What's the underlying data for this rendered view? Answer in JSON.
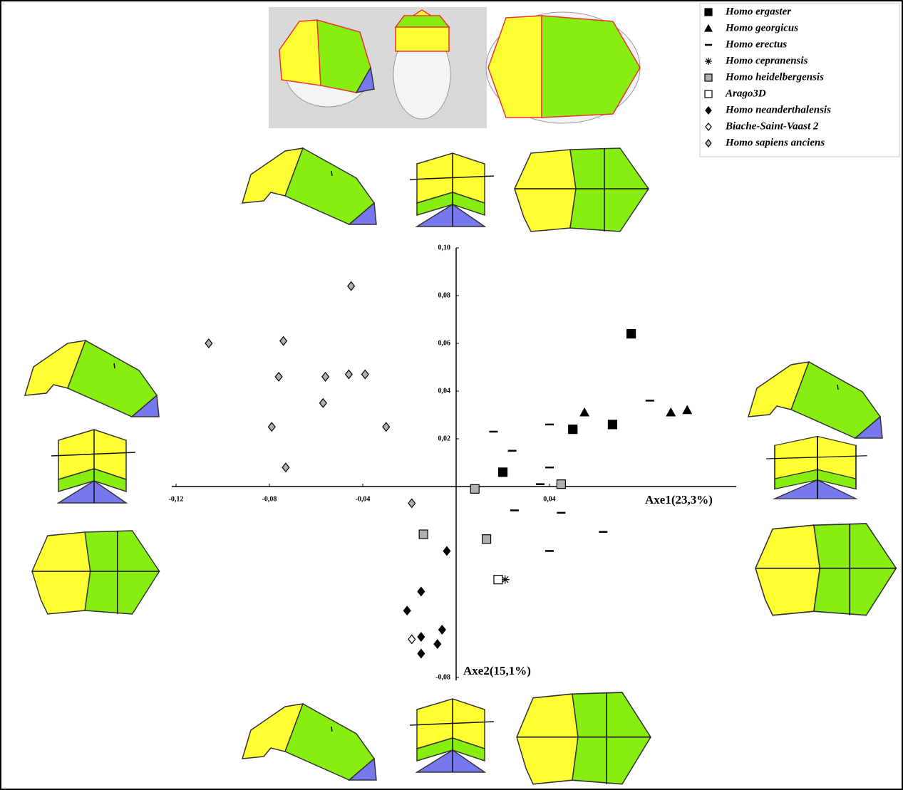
{
  "chart_data": {
    "type": "scatter",
    "x_label": "Axe1(23,3%)",
    "y_label": "Axe2(15,1%)",
    "xlim": [
      -0.12,
      0.12
    ],
    "ylim": [
      -0.08,
      0.1
    ],
    "xticks": [
      {
        "value": -0.12,
        "label": "-0,12"
      },
      {
        "value": -0.08,
        "label": "-0,08"
      },
      {
        "value": -0.04,
        "label": "-0,04"
      },
      {
        "value": 0.04,
        "label": "0,04"
      }
    ],
    "yticks": [
      {
        "value": -0.08,
        "label": "-0,08"
      },
      {
        "value": 0.02,
        "label": "0,02"
      },
      {
        "value": 0.04,
        "label": "0,04"
      },
      {
        "value": 0.06,
        "label": "0,06"
      },
      {
        "value": 0.08,
        "label": "0,08"
      },
      {
        "value": 0.1,
        "label": "0,10"
      }
    ],
    "legend": "upper right",
    "series": [
      {
        "name": "Homo ergaster",
        "marker": "square",
        "color": "#000000",
        "x": [
          0.075,
          0.05,
          0.067,
          0.02
        ],
        "y": [
          0.064,
          0.024,
          0.026,
          0.006
        ]
      },
      {
        "name": "Homo georgicus",
        "marker": "triangle",
        "color": "#000000",
        "x": [
          0.055,
          0.092,
          0.099
        ],
        "y": [
          0.031,
          0.031,
          0.032
        ]
      },
      {
        "name": "Homo erectus",
        "marker": "dash",
        "color": "#000000",
        "x": [
          0.016,
          0.024,
          0.04,
          0.083,
          0.04,
          0.036,
          0.025,
          0.045,
          0.063,
          0.04
        ],
        "y": [
          0.023,
          0.015,
          0.026,
          0.036,
          0.008,
          0.001,
          -0.01,
          -0.011,
          -0.019,
          -0.027
        ]
      },
      {
        "name": "Homo cepranensis",
        "marker": "asterisk",
        "color": "#000000",
        "x": [
          0.021
        ],
        "y": [
          -0.039
        ]
      },
      {
        "name": "Homo heidelbergensis",
        "marker": "square",
        "color": "#b0b0b0",
        "x": [
          0.008,
          0.045,
          -0.014,
          0.013
        ],
        "y": [
          -0.001,
          0.001,
          -0.02,
          -0.022
        ]
      },
      {
        "name": "Arago3D",
        "marker": "square",
        "color": "#ffffff",
        "x": [
          0.018
        ],
        "y": [
          -0.039
        ]
      },
      {
        "name": "Homo neanderthalensis",
        "marker": "diamond",
        "color": "#000000",
        "x": [
          -0.004,
          -0.015,
          -0.021,
          -0.015,
          -0.006,
          -0.008,
          -0.015
        ],
        "y": [
          -0.027,
          -0.044,
          -0.052,
          -0.063,
          -0.06,
          -0.066,
          -0.07
        ]
      },
      {
        "name": "Biache-Saint-Vaast 2",
        "marker": "diamond",
        "color": "#ffffff",
        "x": [
          -0.019
        ],
        "y": [
          -0.064
        ]
      },
      {
        "name": "Homo sapiens anciens",
        "marker": "diamond",
        "color": "#b0b0b0",
        "x": [
          -0.045,
          -0.106,
          -0.074,
          -0.076,
          -0.056,
          -0.046,
          -0.039,
          -0.057,
          -0.03,
          -0.079,
          -0.073,
          -0.019
        ],
        "y": [
          0.084,
          0.06,
          0.061,
          0.046,
          0.046,
          0.047,
          0.047,
          0.035,
          0.025,
          0.025,
          0.008,
          -0.007
        ]
      }
    ]
  }
}
